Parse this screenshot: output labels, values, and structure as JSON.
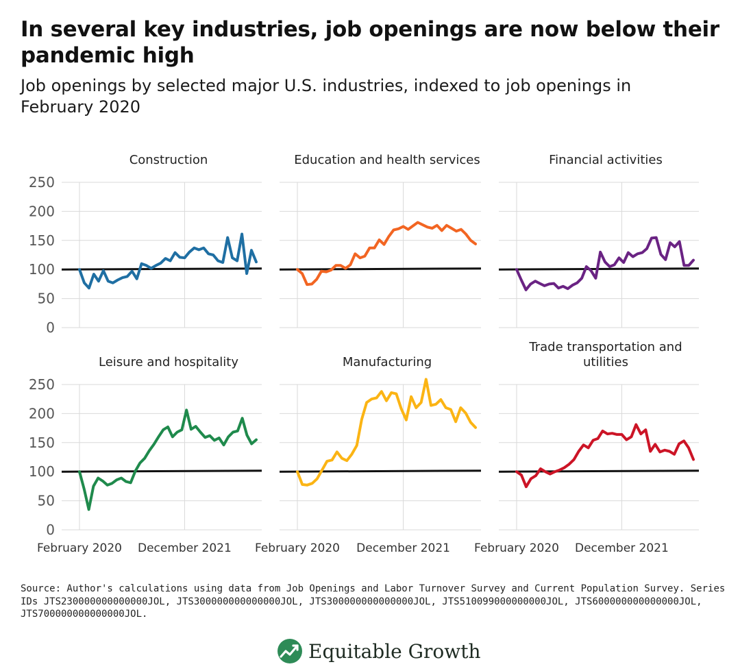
{
  "header": {
    "title": "In several key industries, job openings are now below their pandemic high",
    "subtitle": "Job openings by selected major U.S. industries, indexed to job openings in February 2020"
  },
  "source": "Source: Author's calculations using data from Job Openings and Labor Turnover Survey and Current Population Survey. Series IDs JTS230000000000000JOL, JTS300000000000000JOL, JTS300000000000000JOL, JTS510099000000000JOL, JTS600000000000000JOL, JTS700000000000000JOL.",
  "logo": {
    "text": "Equitable Growth",
    "icon": "growth-chart-logo-icon",
    "color": "#2e8b57"
  },
  "chart_data": {
    "type": "line",
    "layout": "small-multiples 3x2",
    "y_ticks": [
      "250",
      "200",
      "150",
      "100",
      "50",
      "0"
    ],
    "ylim": [
      0,
      250
    ],
    "x_ticks": [
      "February 2020",
      "December 2021"
    ],
    "reference_line": 100,
    "grid": true,
    "panels": [
      {
        "title": "Construction",
        "color": "#1f6fa3",
        "values": [
          100,
          77,
          68,
          92,
          80,
          98,
          80,
          77,
          82,
          86,
          88,
          97,
          84,
          110,
          107,
          102,
          107,
          111,
          119,
          115,
          129,
          121,
          120,
          130,
          137,
          134,
          137,
          127,
          125,
          115,
          112,
          155,
          120,
          115,
          161,
          93,
          133,
          113
        ]
      },
      {
        "title": "Education and health services",
        "color": "#f26522",
        "values": [
          100,
          93,
          74,
          75,
          83,
          97,
          96,
          99,
          107,
          107,
          102,
          108,
          127,
          120,
          123,
          137,
          137,
          151,
          143,
          157,
          168,
          170,
          174,
          169,
          175,
          181,
          177,
          173,
          171,
          176,
          167,
          176,
          171,
          166,
          169,
          161,
          150,
          144
        ]
      },
      {
        "title": "Financial activities",
        "color": "#6a2383",
        "values": [
          100,
          82,
          65,
          75,
          80,
          76,
          72,
          75,
          76,
          68,
          71,
          67,
          73,
          77,
          85,
          105,
          98,
          85,
          130,
          113,
          105,
          108,
          120,
          112,
          129,
          122,
          127,
          129,
          136,
          154,
          155,
          126,
          117,
          146,
          139,
          148,
          107,
          107,
          116
        ]
      },
      {
        "title": "Leisure and hospitality",
        "color": "#1f8a4c",
        "values": [
          100,
          70,
          35,
          75,
          89,
          84,
          77,
          80,
          86,
          89,
          83,
          81,
          101,
          115,
          123,
          136,
          147,
          160,
          172,
          177,
          160,
          168,
          172,
          206,
          173,
          178,
          168,
          159,
          162,
          154,
          158,
          146,
          160,
          168,
          170,
          192,
          163,
          148,
          155
        ]
      },
      {
        "title": "Manufacturing",
        "color": "#fbb414",
        "values": [
          100,
          78,
          77,
          80,
          88,
          103,
          118,
          120,
          134,
          123,
          119,
          130,
          145,
          190,
          219,
          225,
          227,
          238,
          222,
          236,
          234,
          208,
          189,
          229,
          210,
          219,
          259,
          214,
          216,
          224,
          210,
          207,
          186,
          210,
          201,
          185,
          176
        ]
      },
      {
        "title": "Trade transportation and utilities",
        "color": "#cc1426",
        "values": [
          100,
          94,
          74,
          88,
          93,
          105,
          100,
          96,
          100,
          103,
          107,
          113,
          121,
          135,
          146,
          141,
          154,
          157,
          170,
          165,
          166,
          164,
          164,
          155,
          160,
          181,
          165,
          172,
          135,
          147,
          134,
          137,
          135,
          130,
          148,
          153,
          141,
          121
        ]
      }
    ]
  }
}
